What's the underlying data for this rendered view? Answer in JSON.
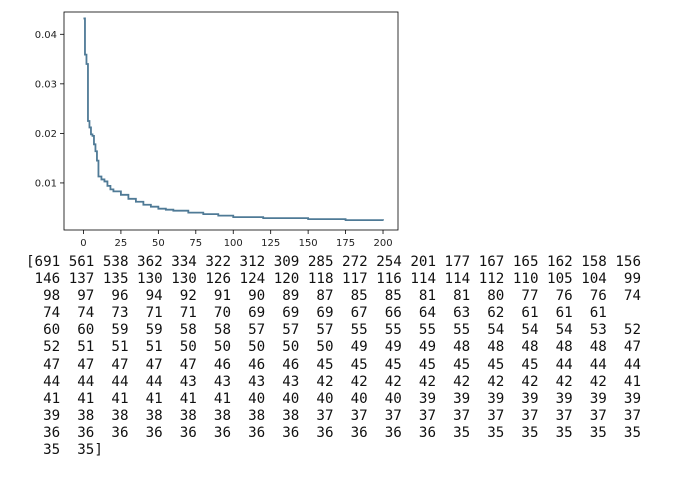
{
  "chart_data": {
    "type": "line",
    "title": "",
    "xlabel": "",
    "ylabel": "",
    "xlim": [
      -13,
      210
    ],
    "ylim": [
      0.0005,
      0.0445
    ],
    "xticks": [
      0,
      25,
      50,
      75,
      100,
      125,
      150,
      175,
      200
    ],
    "yticks": [
      0.01,
      0.02,
      0.03,
      0.04
    ],
    "ytick_labels": [
      "0.01",
      "0.02",
      "0.03",
      "0.04"
    ],
    "grid": false,
    "line_color": "#4f7a96",
    "series": [
      {
        "step": "post",
        "x": [
          0,
          1,
          2,
          3,
          4,
          5,
          6,
          7,
          8,
          9,
          10,
          12,
          14,
          16,
          18,
          20,
          25,
          30,
          35,
          40,
          45,
          50,
          55,
          60,
          70,
          80,
          90,
          100,
          120,
          150,
          175,
          200
        ],
        "y": [
          0.0432,
          0.0359,
          0.034,
          0.0225,
          0.0212,
          0.0198,
          0.0195,
          0.0178,
          0.0164,
          0.0145,
          0.0113,
          0.0107,
          0.0103,
          0.0094,
          0.0087,
          0.0083,
          0.0076,
          0.0068,
          0.0062,
          0.0056,
          0.0052,
          0.0048,
          0.0046,
          0.0044,
          0.004,
          0.0037,
          0.0034,
          0.0031,
          0.0029,
          0.0027,
          0.0025,
          0.0024
        ]
      }
    ]
  },
  "console": {
    "lines": [
      "[691 561 538 362 334 322 312 309 285 272 254 201 177 167 165 162 158 156",
      " 146 137 135 130 130 126 124 120 118 117 116 114 114 112 110 105 104  99",
      "  98  97  96  94  92  91  90  89  87  85  85  81  81  80  77  76  76  74",
      "  74  74  73  71  71  70  69  69  69  67  66  64  63  62  61  61  61",
      "  60  60  59  59  58  58  57  57  57  55  55  55  55  54  54  54  53  52",
      "  52  51  51  51  50  50  50  50  50  49  49  49  48  48  48  48  48  47",
      "  47  47  47  47  47  46  46  46  45  45  45  45  45  45  45  44  44  44",
      "  44  44  44  44  43  43  43  43  42  42  42  42  42  42  42  42  42  41",
      "  41  41  41  41  41  41  40  40  40  40  40  39  39  39  39  39  39  39",
      "  39  38  38  38  38  38  38  38  37  37  37  37  37  37  37  37  37  37",
      "  36  36  36  36  36  36  36  36  36  36  36  36  35  35  35  35  35  35",
      "  35  35]"
    ]
  }
}
